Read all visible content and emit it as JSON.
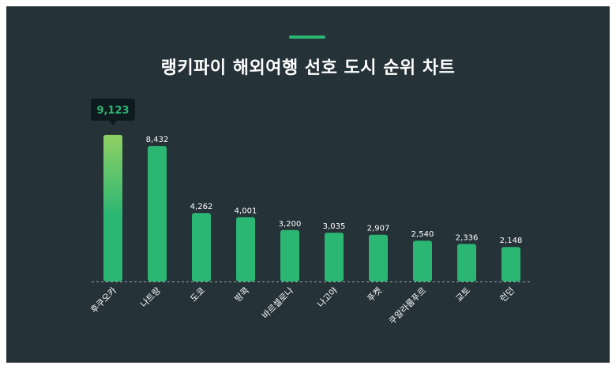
{
  "title": "랭키파이 해외여행 선호 도시 순위 차트",
  "colors": {
    "background": "#253238",
    "bar": "#2bb673",
    "bar_top_gradient": "#8fd163",
    "accent": "#2bb673",
    "tooltip_bg": "#0f1a1f",
    "text": "#ffffff"
  },
  "chart_data": {
    "type": "bar",
    "title": "랭키파이 해외여행 선호 도시 순위 차트",
    "categories": [
      "후쿠오카",
      "나트랑",
      "도쿄",
      "방콕",
      "바르셀로나",
      "나고야",
      "푸켓",
      "쿠알라룸푸르",
      "교토",
      "런던"
    ],
    "values": [
      9123,
      8432,
      4262,
      4001,
      3200,
      3035,
      2907,
      2540,
      2336,
      2148
    ],
    "value_labels": [
      "9,123",
      "8,432",
      "4,262",
      "4,001",
      "3,200",
      "3,035",
      "2,907",
      "2,540",
      "2,336",
      "2,148"
    ],
    "highlight_index": 0,
    "ylim": [
      0,
      9123
    ],
    "grid": false,
    "baseline": "dashed",
    "xlabel": "",
    "ylabel": ""
  }
}
